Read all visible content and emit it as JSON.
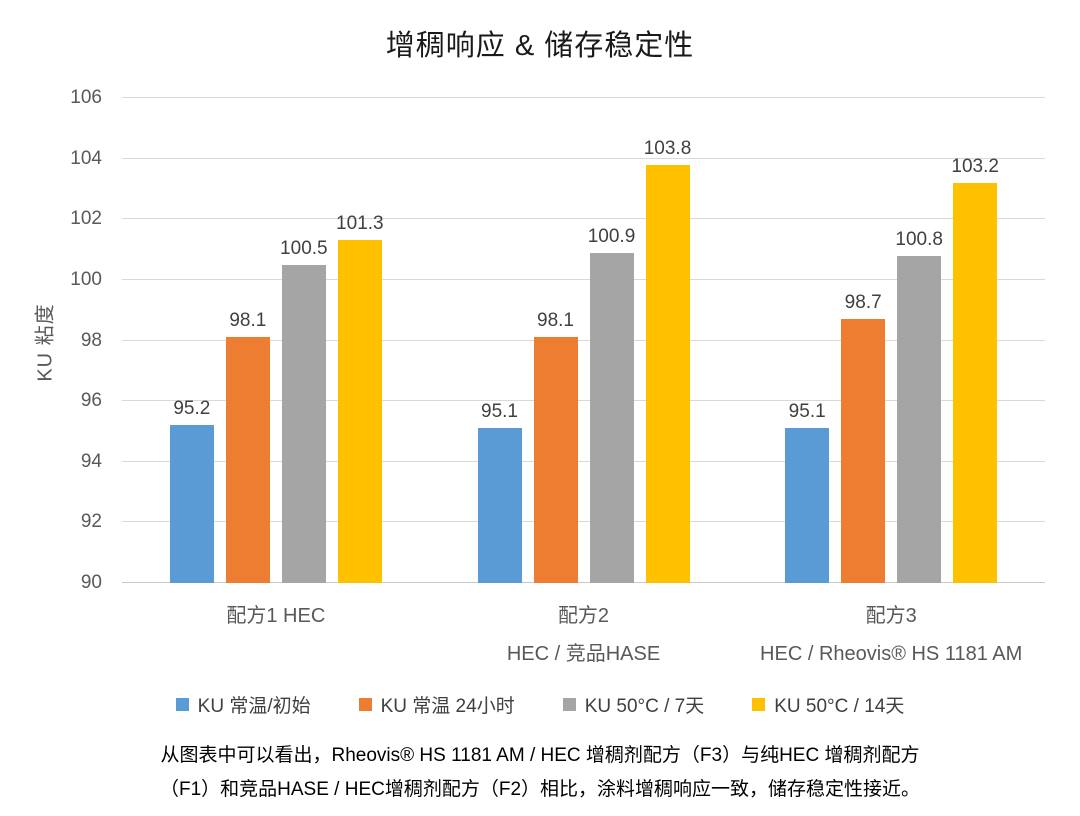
{
  "chart_data": {
    "type": "bar",
    "title": "增稠响应 & 储存稳定性",
    "xlabel": "",
    "ylabel": "KU 粘度",
    "ylim": [
      90,
      106
    ],
    "yticks": [
      90,
      92,
      94,
      96,
      98,
      100,
      102,
      104,
      106
    ],
    "grid": true,
    "legend_position": "bottom",
    "categories": [
      [
        "配方1  HEC"
      ],
      [
        "配方2",
        "HEC / 竞品HASE"
      ],
      [
        "配方3",
        "HEC / Rheovis® HS 1181 AM"
      ]
    ],
    "series": [
      {
        "name": "KU 常温/初始",
        "color": "#5B9BD5",
        "values": [
          95.2,
          95.1,
          95.1
        ]
      },
      {
        "name": "KU 常温 24小时",
        "color": "#ED7D31",
        "values": [
          98.1,
          98.1,
          98.7
        ]
      },
      {
        "name": "KU 50°C / 7天",
        "color": "#A5A5A5",
        "values": [
          100.5,
          100.9,
          100.8
        ]
      },
      {
        "name": "KU 50°C / 14天",
        "color": "#FFC000",
        "values": [
          101.3,
          103.8,
          103.2
        ]
      }
    ]
  },
  "footnote": {
    "line1": "从图表中可以看出，Rheovis® HS 1181 AM / HEC 增稠剂配方（F3）与纯HEC 增稠剂配方",
    "line2": "（F1）和竞品HASE / HEC增稠剂配方（F2）相比，涂料增稠响应一致，储存稳定性接近。"
  }
}
